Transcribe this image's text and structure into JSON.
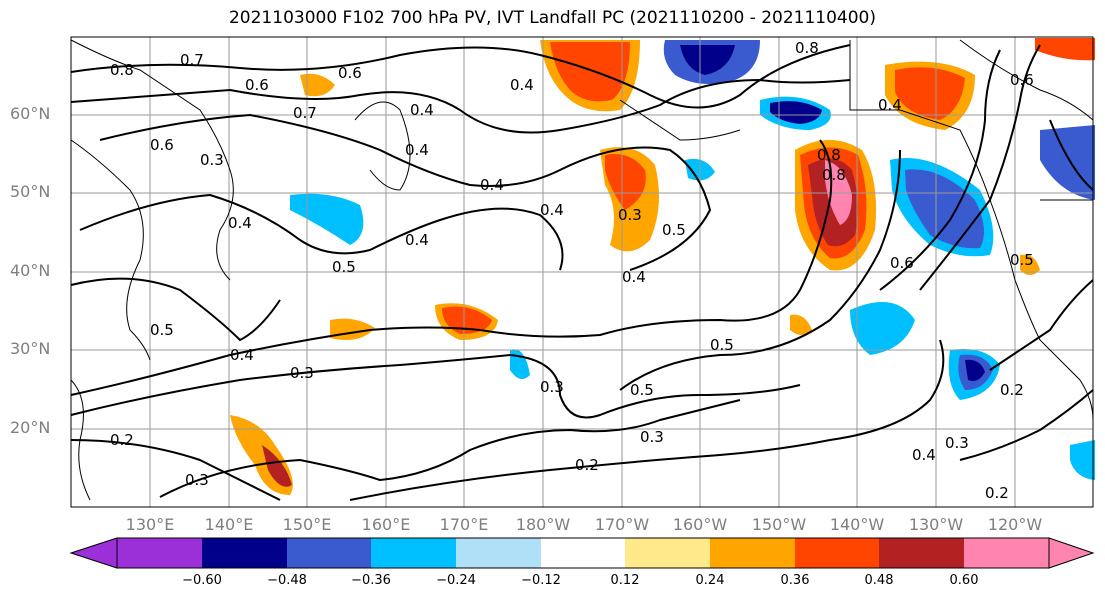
{
  "title": "2021103000 F102 700 hPa PV, IVT Landfall PC (2021110200 - 2021110400)",
  "lat_labels": [
    "60°N",
    "50°N",
    "40°N",
    "30°N",
    "20°N"
  ],
  "lon_labels": [
    "130°E",
    "140°E",
    "150°E",
    "160°E",
    "170°E",
    "180°W",
    "170°W",
    "160°W",
    "150°W",
    "140°W",
    "130°W",
    "120°W"
  ],
  "colorbar": {
    "tick_labels": [
      "−0.60",
      "−0.48",
      "−0.36",
      "−0.24",
      "−0.12",
      "0.12",
      "0.24",
      "0.36",
      "0.48",
      "0.60"
    ],
    "colors": [
      "#9b30d8",
      "#00008b",
      "#3a5bd0",
      "#00bfff",
      "#b0e0f8",
      "#ffffff",
      "#ffe98a",
      "#ffa500",
      "#ff4500",
      "#b22222",
      "#ff85b0"
    ]
  },
  "contour_labels": [
    "0.8",
    "0.7",
    "0.6",
    "0.6",
    "0.7",
    "0.6",
    "0.4",
    "0.3",
    "0.8",
    "0.6",
    "0.5",
    "0.4",
    "0.4",
    "0.4",
    "0.5",
    "0.3",
    "0.4",
    "0.5",
    "0.4",
    "0.8",
    "0.8",
    "0.6",
    "0.4",
    "0.4",
    "0.5",
    "0.5",
    "0.3",
    "0.3",
    "0.5",
    "0.2",
    "0.3",
    "0.4",
    "0.3",
    "0.2",
    "0.2",
    "0.2",
    "0.3",
    "0.4",
    "0.4"
  ]
}
